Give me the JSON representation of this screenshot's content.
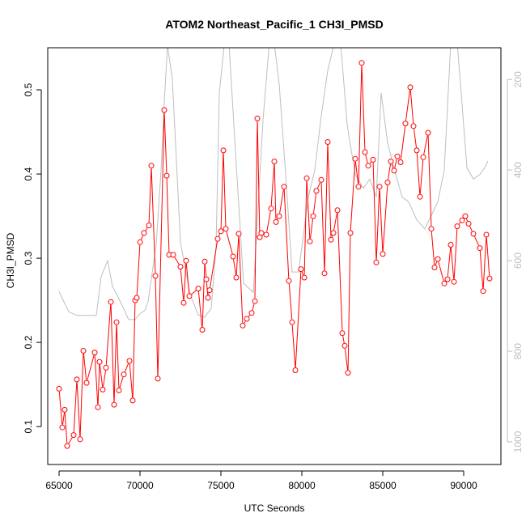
{
  "chart_data": {
    "type": "line",
    "title": "ATOM2 Northeast_Pacific_1 CH3I_PMSD",
    "xlabel": "UTC Seconds",
    "ylabel": "CH3I_PMSD",
    "xlim": [
      64300,
      92300
    ],
    "ylim": [
      0.055,
      0.55
    ],
    "y2lim": [
      1050,
      130
    ],
    "y2_reversed": true,
    "x_ticks": [
      65000,
      70000,
      75000,
      80000,
      85000,
      90000
    ],
    "x_tick_labels": [
      "65000",
      "70000",
      "75000",
      "80000",
      "85000",
      "90000"
    ],
    "y_ticks": [
      0.1,
      0.2,
      0.3,
      0.4,
      0.5
    ],
    "y_tick_labels": [
      "0.1",
      "0.2",
      "0.3",
      "0.4",
      "0.5"
    ],
    "y2_ticks": [
      200,
      400,
      600,
      800,
      1000
    ],
    "y2_tick_labels": [
      "200",
      "400",
      "600",
      "800",
      "1000"
    ],
    "grid": false,
    "colors": {
      "primary": "#ff0000",
      "secondary": "#bebebe",
      "axis": "#000000"
    },
    "series": [
      {
        "role": "primary",
        "style": "line-with-open-circles",
        "x": [
          65000,
          65200,
          65350,
          65500,
          65900,
          66100,
          66300,
          66500,
          66700,
          67200,
          67400,
          67500,
          67700,
          67900,
          68200,
          68400,
          68550,
          68700,
          69000,
          69350,
          69550,
          69700,
          69800,
          70000,
          70250,
          70550,
          70700,
          70950,
          71100,
          71500,
          71650,
          71800,
          72050,
          72500,
          72700,
          72850,
          73050,
          73600,
          73850,
          74000,
          74100,
          74200,
          74300,
          74800,
          75000,
          75150,
          75300,
          75750,
          75950,
          76100,
          76350,
          76600,
          76900,
          77100,
          77250,
          77400,
          77500,
          77800,
          78100,
          78300,
          78400,
          78600,
          78900,
          79200,
          79400,
          79600,
          79950,
          80150,
          80300,
          80500,
          80700,
          80900,
          81200,
          81400,
          81600,
          81800,
          81950,
          82200,
          82500,
          82650,
          82850,
          83000,
          83300,
          83500,
          83700,
          83900,
          84100,
          84400,
          84600,
          84800,
          85000,
          85300,
          85500,
          85700,
          85900,
          86100,
          86400,
          86700,
          86900,
          87100,
          87300,
          87500,
          87800,
          88000,
          88200,
          88400,
          88800,
          89000,
          89200,
          89400,
          89600,
          89900,
          90100,
          90300,
          90600,
          91000,
          91200,
          91400,
          91600
        ],
        "y": [
          0.145,
          0.099,
          0.12,
          0.077,
          0.09,
          0.156,
          0.085,
          0.19,
          0.152,
          0.188,
          0.123,
          0.177,
          0.144,
          0.17,
          0.248,
          0.126,
          0.224,
          0.143,
          0.162,
          0.178,
          0.131,
          0.25,
          0.253,
          0.319,
          0.33,
          0.339,
          0.41,
          0.279,
          0.157,
          0.476,
          0.398,
          0.304,
          0.304,
          0.29,
          0.247,
          0.297,
          0.255,
          0.264,
          0.215,
          0.296,
          0.275,
          0.253,
          0.262,
          0.323,
          0.332,
          0.428,
          0.335,
          0.302,
          0.277,
          0.329,
          0.22,
          0.228,
          0.235,
          0.249,
          0.466,
          0.325,
          0.33,
          0.328,
          0.359,
          0.415,
          0.343,
          0.35,
          0.385,
          0.273,
          0.224,
          0.167,
          0.287,
          0.277,
          0.395,
          0.32,
          0.35,
          0.38,
          0.393,
          0.282,
          0.438,
          0.322,
          0.33,
          0.357,
          0.211,
          0.196,
          0.164,
          0.33,
          0.418,
          0.385,
          0.532,
          0.426,
          0.41,
          0.417,
          0.295,
          0.385,
          0.305,
          0.39,
          0.415,
          0.404,
          0.421,
          0.414,
          0.46,
          0.503,
          0.457,
          0.428,
          0.373,
          0.42,
          0.449,
          0.335,
          0.289,
          0.299,
          0.27,
          0.275,
          0.316,
          0.272,
          0.338,
          0.345,
          0.35,
          0.341,
          0.329,
          0.312,
          0.261,
          0.328,
          0.276
        ]
      },
      {
        "role": "secondary",
        "style": "line",
        "axis": "right",
        "x": [
          65000,
          65600,
          66100,
          66600,
          67300,
          67600,
          68000,
          68300,
          68700,
          69300,
          69700,
          70000,
          70300,
          70500,
          71000,
          71300,
          71500,
          71700,
          72000,
          72500,
          73100,
          73600,
          74000,
          74400,
          74700,
          74900,
          75200,
          75500,
          75900,
          76400,
          77000,
          77300,
          77600,
          78000,
          78300,
          78600,
          79000,
          79400,
          79800,
          80400,
          80800,
          81200,
          81600,
          82000,
          82400,
          82800,
          83300,
          83800,
          84200,
          84600,
          84900,
          85300,
          85800,
          86200,
          86600,
          87100,
          87600,
          88000,
          88400,
          88800,
          89200,
          89600,
          89900,
          90200,
          90600,
          91000,
          91300,
          91500
        ],
        "y": [
          668,
          713,
          721,
          721,
          721,
          635,
          600,
          657,
          684,
          730,
          730,
          717,
          710,
          690,
          565,
          400,
          250,
          125,
          200,
          560,
          675,
          720,
          725,
          705,
          570,
          230,
          125,
          120,
          360,
          650,
          670,
          480,
          290,
          115,
          120,
          210,
          410,
          625,
          625,
          460,
          400,
          280,
          180,
          120,
          120,
          300,
          410,
          440,
          420,
          460,
          230,
          340,
          410,
          460,
          470,
          510,
          530,
          500,
          470,
          400,
          120,
          120,
          255,
          395,
          420,
          410,
          395,
          380
        ]
      }
    ]
  }
}
